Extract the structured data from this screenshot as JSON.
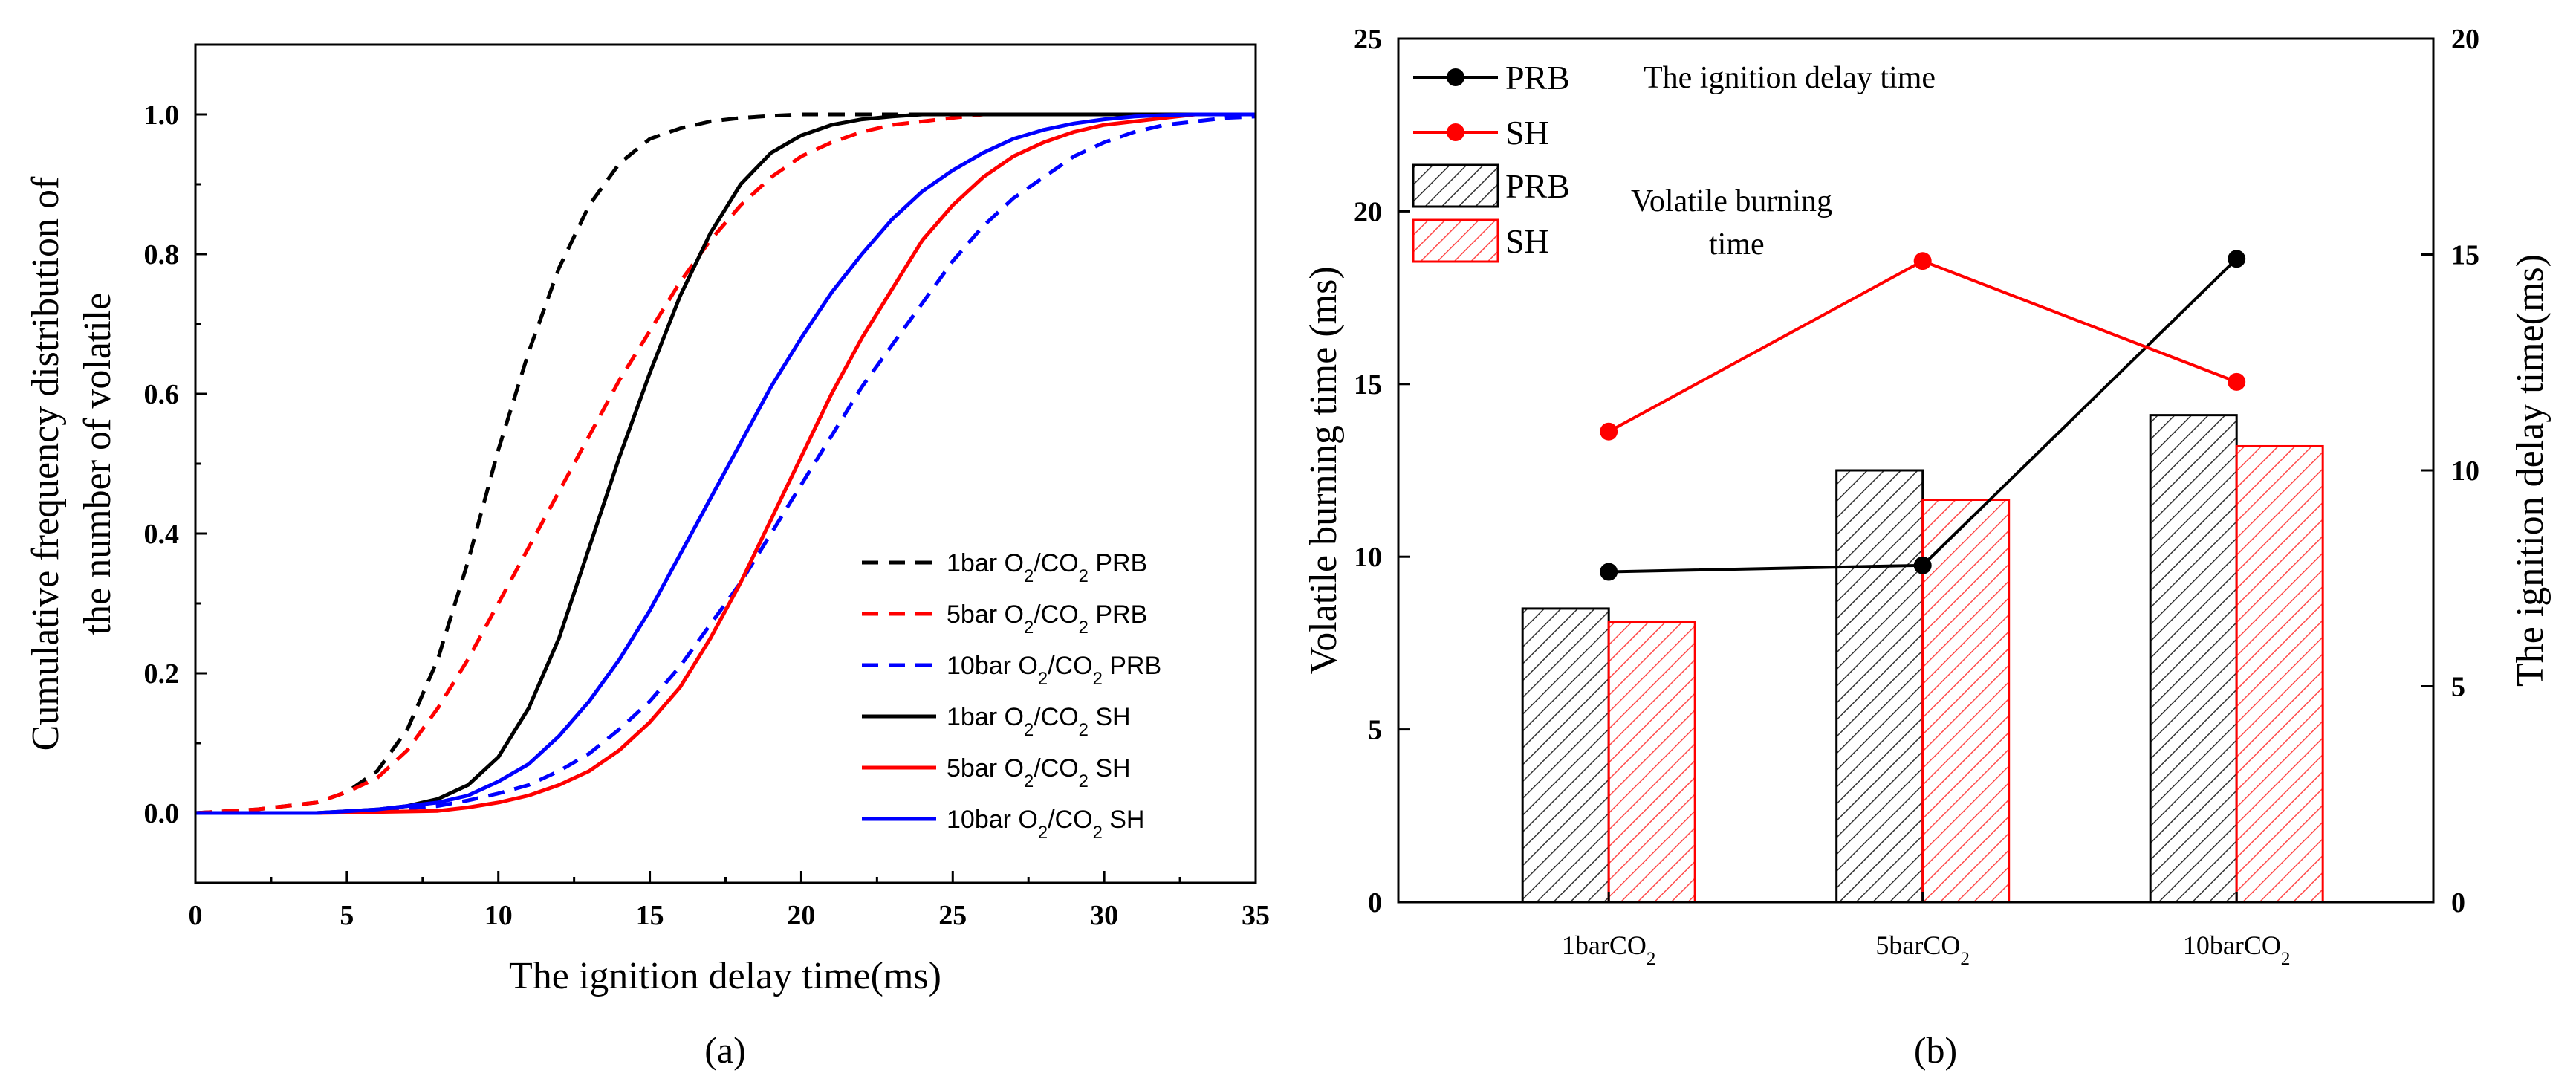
{
  "chart_data": [
    {
      "type": "line",
      "panel_label": "(a)",
      "xlabel": "The ignition delay time(ms)",
      "ylabel_line1": "Cumulative frequency distribution of",
      "ylabel_line2": "the number of volatile",
      "xlim": [
        0,
        35
      ],
      "ylim": [
        -0.1,
        1.1
      ],
      "xticks": [
        0,
        5,
        10,
        15,
        20,
        25,
        30,
        35
      ],
      "yticks": [
        "0.0",
        "0.2",
        "0.4",
        "0.6",
        "0.8",
        "1.0"
      ],
      "legend_position": "bottom-right",
      "series": [
        {
          "name": "1bar O2/CO2 PRB",
          "label_pre": "1bar O",
          "label_mid": "/CO",
          "label_post": " PRB",
          "color": "#000000",
          "dash": true,
          "x": [
            0,
            2,
            4,
            5,
            6,
            7,
            8,
            9,
            10,
            11,
            12,
            13,
            14,
            15,
            16,
            17,
            18,
            19,
            20,
            21,
            22,
            24,
            26,
            30,
            35
          ],
          "y": [
            0.0,
            0.005,
            0.015,
            0.03,
            0.06,
            0.12,
            0.22,
            0.36,
            0.52,
            0.66,
            0.78,
            0.87,
            0.93,
            0.965,
            0.98,
            0.99,
            0.995,
            0.998,
            1.0,
            1.0,
            1.0,
            1.0,
            1.0,
            1.0,
            1.0
          ]
        },
        {
          "name": "5bar O2/CO2 PRB",
          "label_pre": "5bar O",
          "label_mid": "/CO",
          "label_post": " PRB",
          "color": "#ff0000",
          "dash": true,
          "x": [
            0,
            2,
            4,
            5,
            6,
            7,
            8,
            9,
            10,
            11,
            12,
            13,
            14,
            15,
            16,
            17,
            18,
            19,
            20,
            21,
            22,
            23,
            24,
            25,
            26,
            28,
            30,
            35
          ],
          "y": [
            0.0,
            0.005,
            0.015,
            0.03,
            0.05,
            0.09,
            0.15,
            0.22,
            0.3,
            0.38,
            0.46,
            0.54,
            0.62,
            0.69,
            0.76,
            0.82,
            0.87,
            0.91,
            0.94,
            0.96,
            0.975,
            0.985,
            0.99,
            0.995,
            1.0,
            1.0,
            1.0,
            1.0
          ]
        },
        {
          "name": "10bar O2/CO2 PRB",
          "label_pre": "10bar O",
          "label_mid": "/CO",
          "label_post": " PRB",
          "color": "#0000ff",
          "dash": true,
          "x": [
            0,
            4,
            6,
            8,
            9,
            10,
            11,
            12,
            13,
            14,
            15,
            16,
            17,
            18,
            19,
            20,
            21,
            22,
            23,
            24,
            25,
            26,
            27,
            28,
            29,
            30,
            31,
            32,
            33,
            34,
            35
          ],
          "y": [
            0.0,
            0.0,
            0.003,
            0.01,
            0.018,
            0.028,
            0.04,
            0.06,
            0.085,
            0.12,
            0.16,
            0.21,
            0.27,
            0.33,
            0.4,
            0.47,
            0.54,
            0.61,
            0.67,
            0.73,
            0.79,
            0.84,
            0.88,
            0.91,
            0.94,
            0.96,
            0.975,
            0.985,
            0.99,
            0.995,
            0.997
          ]
        },
        {
          "name": "1bar O2/CO2 SH",
          "label_pre": "1bar O",
          "label_mid": "/CO",
          "label_post": " SH",
          "color": "#000000",
          "dash": false,
          "x": [
            0,
            4,
            6,
            7,
            8,
            9,
            10,
            11,
            12,
            13,
            14,
            15,
            16,
            17,
            18,
            19,
            20,
            21,
            22,
            23,
            24,
            26,
            30,
            35
          ],
          "y": [
            0.0,
            0.0,
            0.005,
            0.01,
            0.02,
            0.04,
            0.08,
            0.15,
            0.25,
            0.38,
            0.51,
            0.63,
            0.74,
            0.83,
            0.9,
            0.945,
            0.97,
            0.985,
            0.993,
            0.997,
            1.0,
            1.0,
            1.0,
            1.0
          ]
        },
        {
          "name": "5bar O2/CO2 SH",
          "label_pre": "5bar O",
          "label_mid": "/CO",
          "label_post": " SH",
          "color": "#ff0000",
          "dash": false,
          "x": [
            0,
            4,
            8,
            9,
            10,
            11,
            12,
            13,
            14,
            15,
            16,
            17,
            18,
            19,
            20,
            21,
            22,
            23,
            24,
            25,
            26,
            27,
            28,
            29,
            30,
            31,
            32,
            33,
            35
          ],
          "y": [
            0.0,
            0.0,
            0.003,
            0.008,
            0.015,
            0.025,
            0.04,
            0.06,
            0.09,
            0.13,
            0.18,
            0.25,
            0.33,
            0.42,
            0.51,
            0.6,
            0.68,
            0.75,
            0.82,
            0.87,
            0.91,
            0.94,
            0.96,
            0.975,
            0.985,
            0.99,
            0.995,
            1.0,
            1.0
          ]
        },
        {
          "name": "10bar O2/CO2 SH",
          "label_pre": "10bar O",
          "label_mid": "/CO",
          "label_post": " SH",
          "color": "#0000ff",
          "dash": false,
          "x": [
            0,
            4,
            6,
            8,
            9,
            10,
            11,
            12,
            13,
            14,
            15,
            16,
            17,
            18,
            19,
            20,
            21,
            22,
            23,
            24,
            25,
            26,
            27,
            28,
            29,
            30,
            31,
            32,
            33,
            35
          ],
          "y": [
            0.0,
            0.0,
            0.005,
            0.015,
            0.025,
            0.045,
            0.07,
            0.11,
            0.16,
            0.22,
            0.29,
            0.37,
            0.45,
            0.53,
            0.61,
            0.68,
            0.745,
            0.8,
            0.85,
            0.89,
            0.92,
            0.945,
            0.965,
            0.978,
            0.987,
            0.993,
            0.997,
            0.999,
            1.0,
            1.0
          ]
        }
      ]
    },
    {
      "type": "bar",
      "panel_label": "(b)",
      "categories": [
        {
          "pre": "1barCO",
          "sub": "2"
        },
        {
          "pre": "5barCO",
          "sub": "2"
        },
        {
          "pre": "10barCO",
          "sub": "2"
        }
      ],
      "ylabel": "Volatile burning time (ms)",
      "y2label": "The ignition delay time(ms)",
      "ylim": [
        0,
        25
      ],
      "y2lim": [
        0,
        20
      ],
      "yticks": [
        0,
        5,
        10,
        15,
        20,
        25
      ],
      "y2ticks": [
        0,
        5,
        10,
        15,
        20
      ],
      "bar_series": [
        {
          "name": "PRB",
          "color": "#000000",
          "values": [
            8.5,
            12.5,
            14.1
          ]
        },
        {
          "name": "SH",
          "color": "#ff0000",
          "values": [
            8.1,
            11.65,
            13.2
          ]
        }
      ],
      "line_series": [
        {
          "name": "PRB",
          "color": "#000000",
          "values": [
            7.65,
            7.8,
            14.9
          ]
        },
        {
          "name": "SH",
          "color": "#ff0000",
          "values": [
            10.9,
            14.85,
            12.05
          ]
        }
      ],
      "annotation_line": "The ignition delay time",
      "annotation_bar_1": "Volatile burning",
      "annotation_bar_2": "time",
      "legend_position": "top-left"
    }
  ]
}
